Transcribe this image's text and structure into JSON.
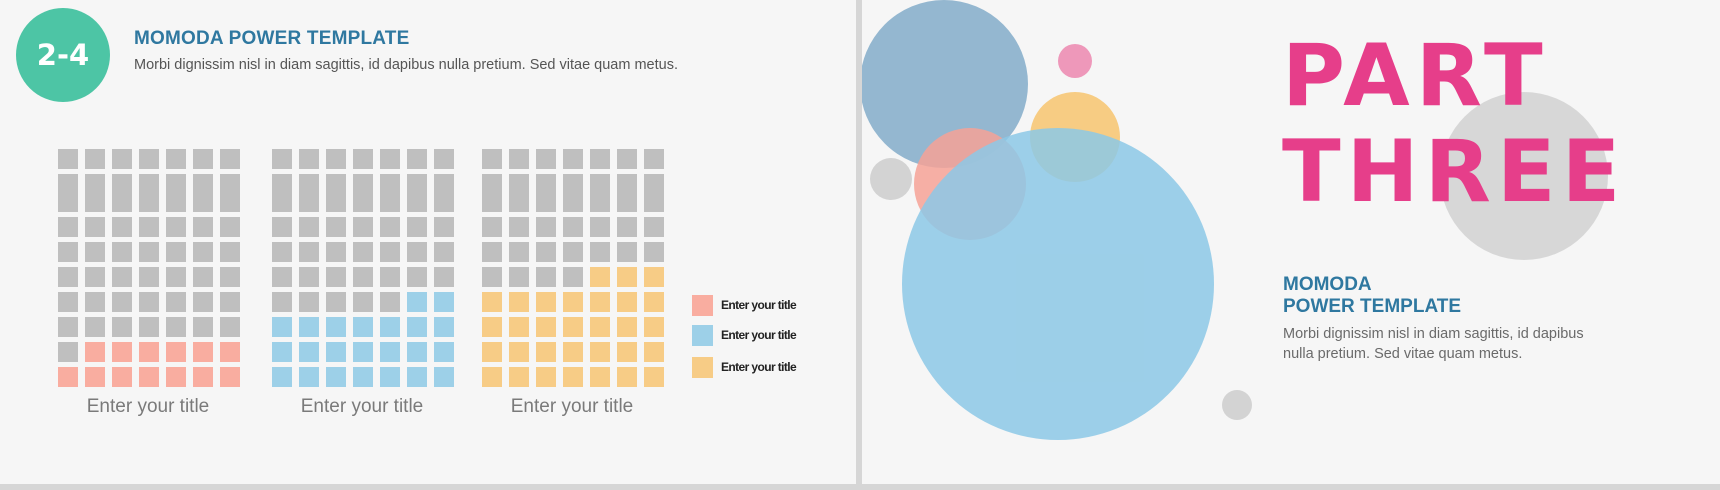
{
  "left_slide": {
    "badge": "2-4",
    "title": "MOMODA POWER TEMPLATE",
    "subtitle": "Morbi dignissim nisl in diam sagittis, id dapibus nulla pretium. Sed vitae quam metus.",
    "grids": [
      {
        "caption": "Enter your title",
        "filled": 13,
        "color": "#f9ada0"
      },
      {
        "caption": "Enter your title",
        "filled": 23,
        "color": "#9dd0e8"
      },
      {
        "caption": "Enter your title",
        "filled": 31,
        "color": "#f7cc86"
      }
    ],
    "grid_empty_color": "#bfbfbf",
    "legend": [
      {
        "label": "Enter your title",
        "color": "#f9ada0"
      },
      {
        "label": "Enter your title",
        "color": "#9dd0e8"
      },
      {
        "label": "Enter your title",
        "color": "#f7cc86"
      }
    ]
  },
  "right_slide": {
    "part_title_line1": "PART",
    "part_title_line2": "THREE",
    "title_line1": "MOMODA",
    "title_line2": "POWER TEMPLATE",
    "subtitle": "Morbi dignissim nisl in diam sagittis, id dapibus nulla pretium. Sed vitae quam metus."
  },
  "colors": {
    "accent_pink": "#e63e8a",
    "accent_blue": "#2f78a0",
    "badge_green": "#4dc5a5"
  }
}
